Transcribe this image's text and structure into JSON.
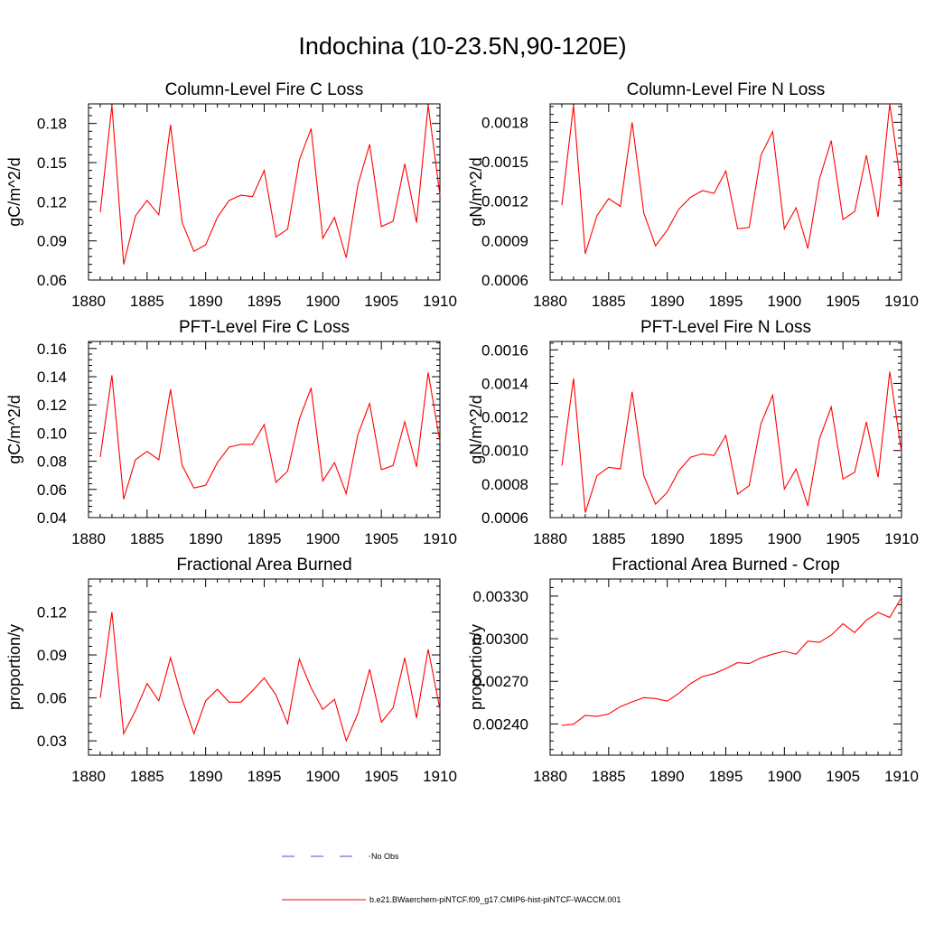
{
  "title": "Indochina (10-23.5N,90-120E)",
  "legend": [
    {
      "label": "No Obs",
      "color": "#3b4fd6",
      "style": "dashed"
    },
    {
      "label": "b.e21.BWaerchem-piNTCF.f09_g17.CMIP6-hist-piNTCF-WACCM.001",
      "color": "#ff0000",
      "style": "solid"
    }
  ],
  "chart_data": [
    {
      "type": "line",
      "title": "Column-Level Fire C Loss",
      "ylabel": "gC/m^2/d",
      "xlim": [
        1880,
        1910
      ],
      "ylim": [
        0.06,
        0.195
      ],
      "xticks": [
        "1880",
        "1885",
        "1890",
        "1895",
        "1900",
        "1905",
        "1910"
      ],
      "yticks": [
        "0.06",
        "0.09",
        "0.12",
        "0.15",
        "0.18"
      ],
      "series": [
        {
          "color": "#ff0000",
          "x": [
            1881,
            1882,
            1883,
            1884,
            1885,
            1886,
            1887,
            1888,
            1889,
            1890,
            1891,
            1892,
            1893,
            1894,
            1895,
            1896,
            1897,
            1898,
            1899,
            1900,
            1901,
            1902,
            1903,
            1904,
            1905,
            1906,
            1907,
            1908,
            1909,
            1910
          ],
          "y": [
            0.112,
            0.194,
            0.072,
            0.109,
            0.121,
            0.11,
            0.179,
            0.104,
            0.082,
            0.087,
            0.108,
            0.121,
            0.125,
            0.124,
            0.144,
            0.093,
            0.099,
            0.152,
            0.176,
            0.092,
            0.108,
            0.077,
            0.133,
            0.164,
            0.101,
            0.105,
            0.149,
            0.104,
            0.194,
            0.125
          ]
        }
      ]
    },
    {
      "type": "line",
      "title": "Column-Level Fire N Loss",
      "ylabel": "gN/m^2/d",
      "xlim": [
        1880,
        1910
      ],
      "ylim": [
        0.0006,
        0.00194
      ],
      "xticks": [
        "1880",
        "1885",
        "1890",
        "1895",
        "1900",
        "1905",
        "1910"
      ],
      "yticks": [
        "0.0006",
        "0.0009",
        "0.0012",
        "0.0015",
        "0.0018"
      ],
      "series": [
        {
          "color": "#ff0000",
          "x": [
            1881,
            1882,
            1883,
            1884,
            1885,
            1886,
            1887,
            1888,
            1889,
            1890,
            1891,
            1892,
            1893,
            1894,
            1895,
            1896,
            1897,
            1898,
            1899,
            1900,
            1901,
            1902,
            1903,
            1904,
            1905,
            1906,
            1907,
            1908,
            1909,
            1910
          ],
          "y": [
            0.00117,
            0.00193,
            0.0008,
            0.00109,
            0.00122,
            0.00116,
            0.0018,
            0.00111,
            0.00086,
            0.00098,
            0.00114,
            0.00123,
            0.00128,
            0.00126,
            0.00143,
            0.00099,
            0.001,
            0.00155,
            0.00173,
            0.00099,
            0.00115,
            0.00084,
            0.00137,
            0.00166,
            0.00106,
            0.00112,
            0.00155,
            0.00108,
            0.00194,
            0.00129
          ]
        }
      ]
    },
    {
      "type": "line",
      "title": "PFT-Level Fire C Loss",
      "ylabel": "gC/m^2/d",
      "xlim": [
        1880,
        1910
      ],
      "ylim": [
        0.04,
        0.165
      ],
      "xticks": [
        "1880",
        "1885",
        "1890",
        "1895",
        "1900",
        "1905",
        "1910"
      ],
      "yticks": [
        "0.04",
        "0.06",
        "0.08",
        "0.10",
        "0.12",
        "0.14",
        "0.16"
      ],
      "series": [
        {
          "color": "#ff0000",
          "x": [
            1881,
            1882,
            1883,
            1884,
            1885,
            1886,
            1887,
            1888,
            1889,
            1890,
            1891,
            1892,
            1893,
            1894,
            1895,
            1896,
            1897,
            1898,
            1899,
            1900,
            1901,
            1902,
            1903,
            1904,
            1905,
            1906,
            1907,
            1908,
            1909,
            1910
          ],
          "y": [
            0.083,
            0.141,
            0.053,
            0.081,
            0.087,
            0.081,
            0.131,
            0.077,
            0.061,
            0.063,
            0.079,
            0.09,
            0.092,
            0.092,
            0.106,
            0.065,
            0.073,
            0.11,
            0.132,
            0.066,
            0.079,
            0.057,
            0.099,
            0.121,
            0.074,
            0.077,
            0.108,
            0.076,
            0.143,
            0.094
          ]
        }
      ]
    },
    {
      "type": "line",
      "title": "PFT-Level Fire N Loss",
      "ylabel": "gN/m^2/d",
      "xlim": [
        1880,
        1910
      ],
      "ylim": [
        0.0006,
        0.00165
      ],
      "xticks": [
        "1880",
        "1885",
        "1890",
        "1895",
        "1900",
        "1905",
        "1910"
      ],
      "yticks": [
        "0.0006",
        "0.0008",
        "0.0010",
        "0.0012",
        "0.0014",
        "0.0016"
      ],
      "series": [
        {
          "color": "#ff0000",
          "x": [
            1881,
            1882,
            1883,
            1884,
            1885,
            1886,
            1887,
            1888,
            1889,
            1890,
            1891,
            1892,
            1893,
            1894,
            1895,
            1896,
            1897,
            1898,
            1899,
            1900,
            1901,
            1902,
            1903,
            1904,
            1905,
            1906,
            1907,
            1908,
            1909,
            1910
          ],
          "y": [
            0.00091,
            0.00143,
            0.00063,
            0.00085,
            0.0009,
            0.00089,
            0.00135,
            0.00085,
            0.00068,
            0.00075,
            0.00088,
            0.00096,
            0.00098,
            0.00097,
            0.00109,
            0.00074,
            0.00079,
            0.00116,
            0.00133,
            0.00077,
            0.00089,
            0.00067,
            0.00107,
            0.00126,
            0.00083,
            0.00087,
            0.00117,
            0.00084,
            0.00147,
            0.00099
          ]
        }
      ]
    },
    {
      "type": "line",
      "title": "Fractional Area Burned",
      "ylabel": "proportion/y",
      "xlim": [
        1880,
        1910
      ],
      "ylim": [
        0.02,
        0.143
      ],
      "xticks": [
        "1880",
        "1885",
        "1890",
        "1895",
        "1900",
        "1905",
        "1910"
      ],
      "yticks": [
        "0.03",
        "0.06",
        "0.09",
        "0.12"
      ],
      "series": [
        {
          "color": "#ff0000",
          "x": [
            1881,
            1882,
            1883,
            1884,
            1885,
            1886,
            1887,
            1888,
            1889,
            1890,
            1891,
            1892,
            1893,
            1894,
            1895,
            1896,
            1897,
            1898,
            1899,
            1900,
            1901,
            1902,
            1903,
            1904,
            1905,
            1906,
            1907,
            1908,
            1909,
            1910
          ],
          "y": [
            0.06,
            0.12,
            0.035,
            0.051,
            0.07,
            0.058,
            0.088,
            0.059,
            0.035,
            0.058,
            0.066,
            0.057,
            0.057,
            0.065,
            0.074,
            0.062,
            0.042,
            0.087,
            0.067,
            0.052,
            0.059,
            0.03,
            0.049,
            0.08,
            0.043,
            0.053,
            0.088,
            0.046,
            0.094,
            0.052
          ]
        }
      ]
    },
    {
      "type": "line",
      "title": "Fractional Area Burned - Crop",
      "ylabel": "proportion/y",
      "xlim": [
        1880,
        1910
      ],
      "ylim": [
        0.00218,
        0.00342
      ],
      "xticks": [
        "1880",
        "1885",
        "1890",
        "1895",
        "1900",
        "1905",
        "1910"
      ],
      "yticks": [
        "0.00240",
        "0.00270",
        "0.00300",
        "0.00330"
      ],
      "series": [
        {
          "color": "#ff0000",
          "x": [
            1881,
            1882,
            1883,
            1884,
            1885,
            1886,
            1887,
            1888,
            1889,
            1890,
            1891,
            1892,
            1893,
            1894,
            1895,
            1896,
            1897,
            1898,
            1899,
            1900,
            1901,
            1902,
            1903,
            1904,
            1905,
            1906,
            1907,
            1908,
            1909,
            1910
          ],
          "y": [
            0.00239,
            0.002398,
            0.00246,
            0.002453,
            0.00247,
            0.002522,
            0.002555,
            0.002585,
            0.002579,
            0.00256,
            0.002616,
            0.002685,
            0.002733,
            0.002754,
            0.00279,
            0.002831,
            0.002825,
            0.002865,
            0.002891,
            0.002912,
            0.00289,
            0.002983,
            0.002974,
            0.003025,
            0.003105,
            0.003043,
            0.00313,
            0.003185,
            0.00315,
            0.00329
          ]
        }
      ]
    }
  ]
}
